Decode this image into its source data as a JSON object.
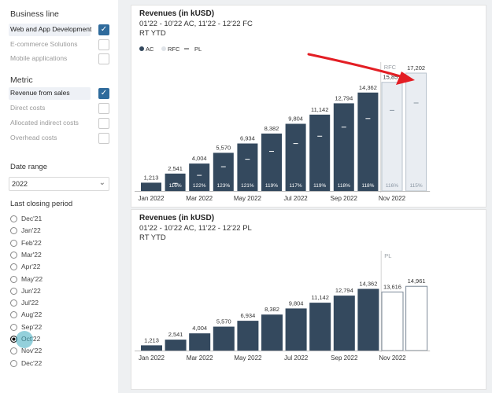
{
  "sidebar": {
    "business_line": {
      "title": "Business line",
      "items": [
        {
          "label": "Web and App Development",
          "checked": true
        },
        {
          "label": "E-commerce Solutions",
          "checked": false
        },
        {
          "label": "Mobile applications",
          "checked": false
        }
      ]
    },
    "metric": {
      "title": "Metric",
      "items": [
        {
          "label": "Revenue from sales",
          "checked": true
        },
        {
          "label": "Direct costs",
          "checked": false
        },
        {
          "label": "Allocated indirect costs",
          "checked": false
        },
        {
          "label": "Overhead costs",
          "checked": false
        }
      ]
    },
    "date_range": {
      "title": "Date range",
      "value": "2022"
    },
    "closing_period": {
      "title": "Last closing period",
      "options": [
        "Dec'21",
        "Jan'22",
        "Feb'22",
        "Mar'22",
        "Apr'22",
        "May'22",
        "Jun'22",
        "Jul'22",
        "Aug'22",
        "Sep'22",
        "Oct'22",
        "Nov'22",
        "Dec'22"
      ],
      "selected": "Oct'22"
    }
  },
  "chart_data": [
    {
      "type": "bar",
      "title": "Revenues (in kUSD)",
      "subtitle": "01'22 - 10'22 AC, 11'22 - 12'22 FC",
      "subtitle2": "RT YTD",
      "legend": [
        "AC",
        "RFC",
        "PL"
      ],
      "section_label": "RFC",
      "x_tick_labels": [
        "Jan 2022",
        "Mar 2022",
        "May 2022",
        "Jul 2022",
        "Sep 2022",
        "Nov 2022"
      ],
      "categories": [
        "Jan 2022",
        "Feb 2022",
        "Mar 2022",
        "Apr 2022",
        "May 2022",
        "Jun 2022",
        "Jul 2022",
        "Aug 2022",
        "Sep 2022",
        "Oct 2022",
        "Nov 2022",
        "Dec 2022"
      ],
      "series": [
        {
          "name": "AC",
          "values": [
            1213,
            2541,
            4004,
            5570,
            6934,
            8382,
            9804,
            11142,
            12794,
            14362,
            null,
            null
          ]
        },
        {
          "name": "RFC",
          "values": [
            null,
            null,
            null,
            null,
            null,
            null,
            null,
            null,
            null,
            null,
            15857,
            17202
          ]
        }
      ],
      "labels": [
        "1,213",
        "2,541",
        "4,004",
        "5,570",
        "6,934",
        "8,382",
        "9,804",
        "11,142",
        "12,794",
        "14,362",
        "15,857",
        "17,202"
      ],
      "ratio_labels": [
        "",
        "116%",
        "122%",
        "123%",
        "121%",
        "119%",
        "117%",
        "119%",
        "118%",
        "118%",
        "116%",
        "115%"
      ],
      "accent": "#34495e",
      "forecast_fill": "#e9edf2",
      "arrow_color": "#e31e24"
    },
    {
      "type": "bar",
      "title": "Revenues (in kUSD)",
      "subtitle": "01'22 - 10'22 AC, 11'22 - 12'22 PL",
      "subtitle2": "RT YTD",
      "section_label": "PL",
      "x_tick_labels": [
        "Jan 2022",
        "Mar 2022",
        "May 2022",
        "Jul 2022",
        "Sep 2022",
        "Nov 2022"
      ],
      "categories": [
        "Jan 2022",
        "Feb 2022",
        "Mar 2022",
        "Apr 2022",
        "May 2022",
        "Jun 2022",
        "Jul 2022",
        "Aug 2022",
        "Sep 2022",
        "Oct 2022",
        "Nov 2022",
        "Dec 2022"
      ],
      "series": [
        {
          "name": "AC",
          "values": [
            1213,
            2541,
            4004,
            5570,
            6934,
            8382,
            9804,
            11142,
            12794,
            14362,
            null,
            null
          ]
        },
        {
          "name": "PL",
          "values": [
            null,
            null,
            null,
            null,
            null,
            null,
            null,
            null,
            null,
            null,
            13616,
            14961
          ]
        }
      ],
      "labels": [
        "1,213",
        "2,541",
        "4,004",
        "5,570",
        "6,934",
        "8,382",
        "9,804",
        "11,142",
        "12,794",
        "14,362",
        "13,616",
        "14,961"
      ],
      "accent": "#34495e"
    }
  ]
}
